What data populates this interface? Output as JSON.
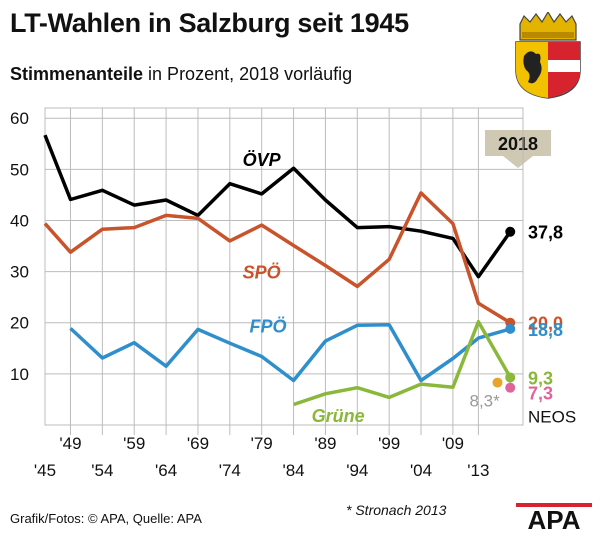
{
  "title": "LT-Wahlen in Salzburg seit 1945",
  "subtitle": {
    "bold": "Stimmenanteile",
    "rest": " in Prozent, 2018 vorläufig"
  },
  "badge": "2018",
  "footer": {
    "credits": "Grafik/Fotos: © APA, Quelle: APA",
    "note": "* Stronach 2013",
    "logo": "APA"
  },
  "colors": {
    "oevp": "#000000",
    "spoe": "#c9532a",
    "fpoe": "#2f8fcc",
    "gruene": "#8ab83a",
    "neos": "#e0649a",
    "stronach": "#e4a62c",
    "grid": "#bcbcbc",
    "badge": "#cfc9b4"
  },
  "chart_data": {
    "type": "line",
    "title": "LT-Wahlen in Salzburg seit 1945",
    "xlabel": "",
    "ylabel": "",
    "ylim": [
      0,
      62
    ],
    "yticks": [
      10,
      20,
      30,
      40,
      50,
      60
    ],
    "x": [
      1945,
      1949,
      1954,
      1959,
      1964,
      1969,
      1974,
      1979,
      1984,
      1989,
      1994,
      1999,
      2004,
      2009,
      2013,
      2018
    ],
    "x_tick_labels": [
      "'45",
      "'49",
      "'54",
      "'59",
      "'64",
      "'69",
      "'74",
      "'79",
      "'84",
      "'89",
      "'94",
      "'99",
      "'04",
      "'09",
      "'13"
    ],
    "series": [
      {
        "name": "ÖVP",
        "color": "#000000",
        "values": [
          56.7,
          44.1,
          45.9,
          43.0,
          44.0,
          41.0,
          47.2,
          45.2,
          50.2,
          44.0,
          38.6,
          38.8,
          37.9,
          36.5,
          29.0,
          37.8
        ],
        "end_label": "37,8"
      },
      {
        "name": "SPÖ",
        "color": "#c9532a",
        "values": [
          39.4,
          33.8,
          38.3,
          38.6,
          41.0,
          40.4,
          36.0,
          39.1,
          35.1,
          31.2,
          27.1,
          32.4,
          45.4,
          39.4,
          23.8,
          20.0
        ],
        "end_label": "20,0"
      },
      {
        "name": "FPÖ",
        "color": "#2f8fcc",
        "values": [
          null,
          18.9,
          13.1,
          16.1,
          11.5,
          18.7,
          16.0,
          13.4,
          8.7,
          16.4,
          19.5,
          19.6,
          8.7,
          13.0,
          17.0,
          18.8
        ],
        "end_label": "18,8"
      },
      {
        "name": "Grüne",
        "color": "#8ab83a",
        "values": [
          null,
          null,
          null,
          null,
          null,
          null,
          null,
          null,
          4.0,
          6.1,
          7.3,
          5.4,
          8.0,
          7.4,
          20.2,
          9.3
        ],
        "end_label": "9,3"
      }
    ],
    "points": [
      {
        "name": "NEOS",
        "x": 2018,
        "value": 7.3,
        "color": "#e0649a",
        "label": "7,3"
      },
      {
        "name": "Stronach",
        "x": 2016,
        "value": 8.3,
        "color": "#e4a62c",
        "label": "8,3*"
      }
    ],
    "series_labels": [
      {
        "text": "ÖVP",
        "x": 1979,
        "value": 52,
        "color": "#000000"
      },
      {
        "text": "SPÖ",
        "x": 1979,
        "value": 30,
        "color": "#c9532a"
      },
      {
        "text": "FPÖ",
        "x": 1980,
        "value": 19.5,
        "color": "#2f8fcc"
      },
      {
        "text": "Grüne",
        "x": 1991,
        "value": 2,
        "color": "#8ab83a"
      }
    ],
    "neos_axis_label": "NEOS"
  }
}
